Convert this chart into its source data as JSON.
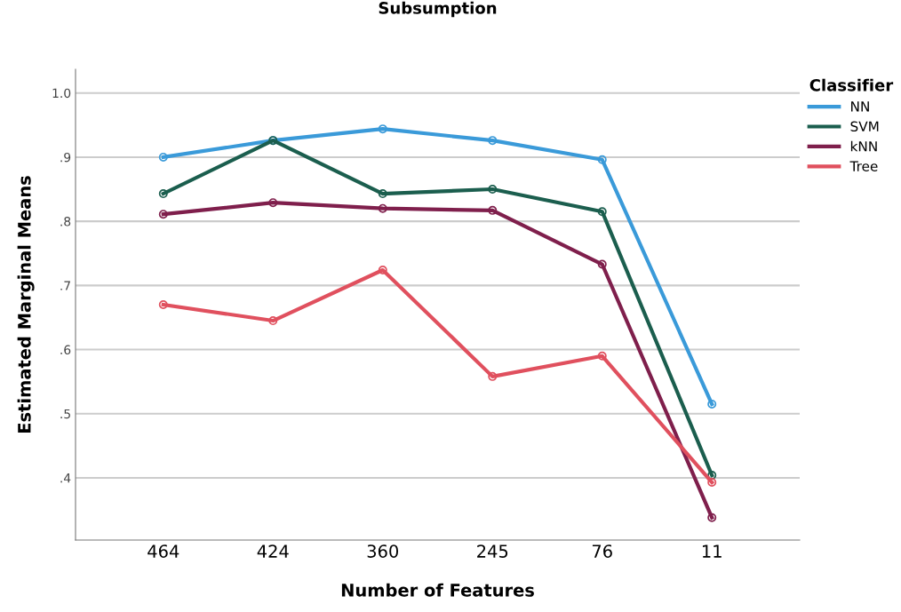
{
  "chart_data": {
    "type": "line",
    "title": "Subsumption",
    "xlabel": "Number of Features",
    "ylabel": "Estimated Marginal Means",
    "legend_title": "Classifier",
    "categories": [
      "464",
      "424",
      "360",
      "245",
      "76",
      "11"
    ],
    "series": [
      {
        "name": "NN",
        "color": "#3a9ad9",
        "values": [
          0.9,
          0.926,
          0.944,
          0.926,
          0.896,
          0.515
        ]
      },
      {
        "name": "SVM",
        "color": "#1b5e4e",
        "values": [
          0.843,
          0.926,
          0.843,
          0.85,
          0.815,
          0.404
        ]
      },
      {
        "name": "kNN",
        "color": "#7f1f4c",
        "values": [
          0.811,
          0.829,
          0.82,
          0.817,
          0.733,
          0.338
        ]
      },
      {
        "name": "Tree",
        "color": "#e0505e",
        "values": [
          0.67,
          0.645,
          0.724,
          0.558,
          0.59,
          0.393
        ]
      }
    ],
    "ylim": [
      0.303,
      1.037
    ],
    "yticks": [
      {
        "value": 0.4,
        "label": ".4"
      },
      {
        "value": 0.5,
        "label": ".5"
      },
      {
        "value": 0.6,
        "label": ".6"
      },
      {
        "value": 0.7,
        "label": ".7"
      },
      {
        "value": 0.8,
        "label": ".8"
      },
      {
        "value": 0.9,
        "label": ".9"
      },
      {
        "value": 1.0,
        "label": "1.0"
      }
    ],
    "grid": "y",
    "legend": "top right",
    "marker": "circle",
    "line_style": "solid"
  }
}
